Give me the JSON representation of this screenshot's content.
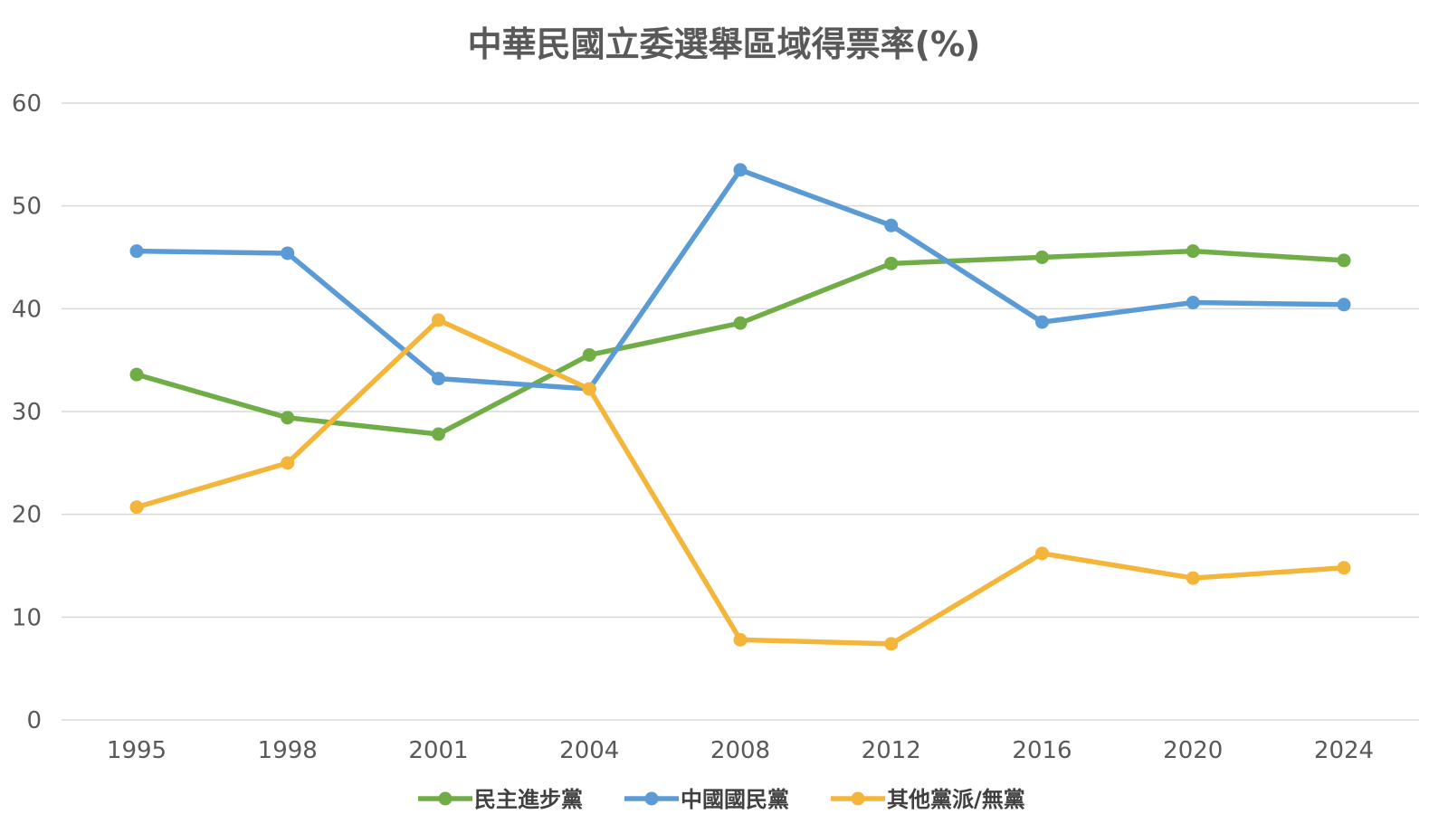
{
  "chart_data": {
    "type": "line",
    "title": "中華民國立委選舉區域得票率(%)",
    "xlabel": "",
    "ylabel": "",
    "categories": [
      "1995",
      "1998",
      "2001",
      "2004",
      "2008",
      "2012",
      "2016",
      "2020",
      "2024"
    ],
    "ylim": [
      0,
      60
    ],
    "yticks": [
      0,
      10,
      20,
      30,
      40,
      50,
      60
    ],
    "grid": true,
    "legend_position": "bottom",
    "series": [
      {
        "name": "民主進步黨",
        "color": "#70ad47",
        "values": [
          33.6,
          29.4,
          27.8,
          35.5,
          38.6,
          44.4,
          45.0,
          45.6,
          44.7
        ]
      },
      {
        "name": "中國國民黨",
        "color": "#5b9bd5",
        "values": [
          45.6,
          45.4,
          33.2,
          32.2,
          53.5,
          48.1,
          38.7,
          40.6,
          40.4
        ]
      },
      {
        "name": "其他黨派/無黨",
        "color": "#f4b63a",
        "values": [
          20.7,
          25.0,
          38.9,
          32.2,
          7.8,
          7.4,
          16.2,
          13.8,
          14.8
        ]
      }
    ]
  }
}
